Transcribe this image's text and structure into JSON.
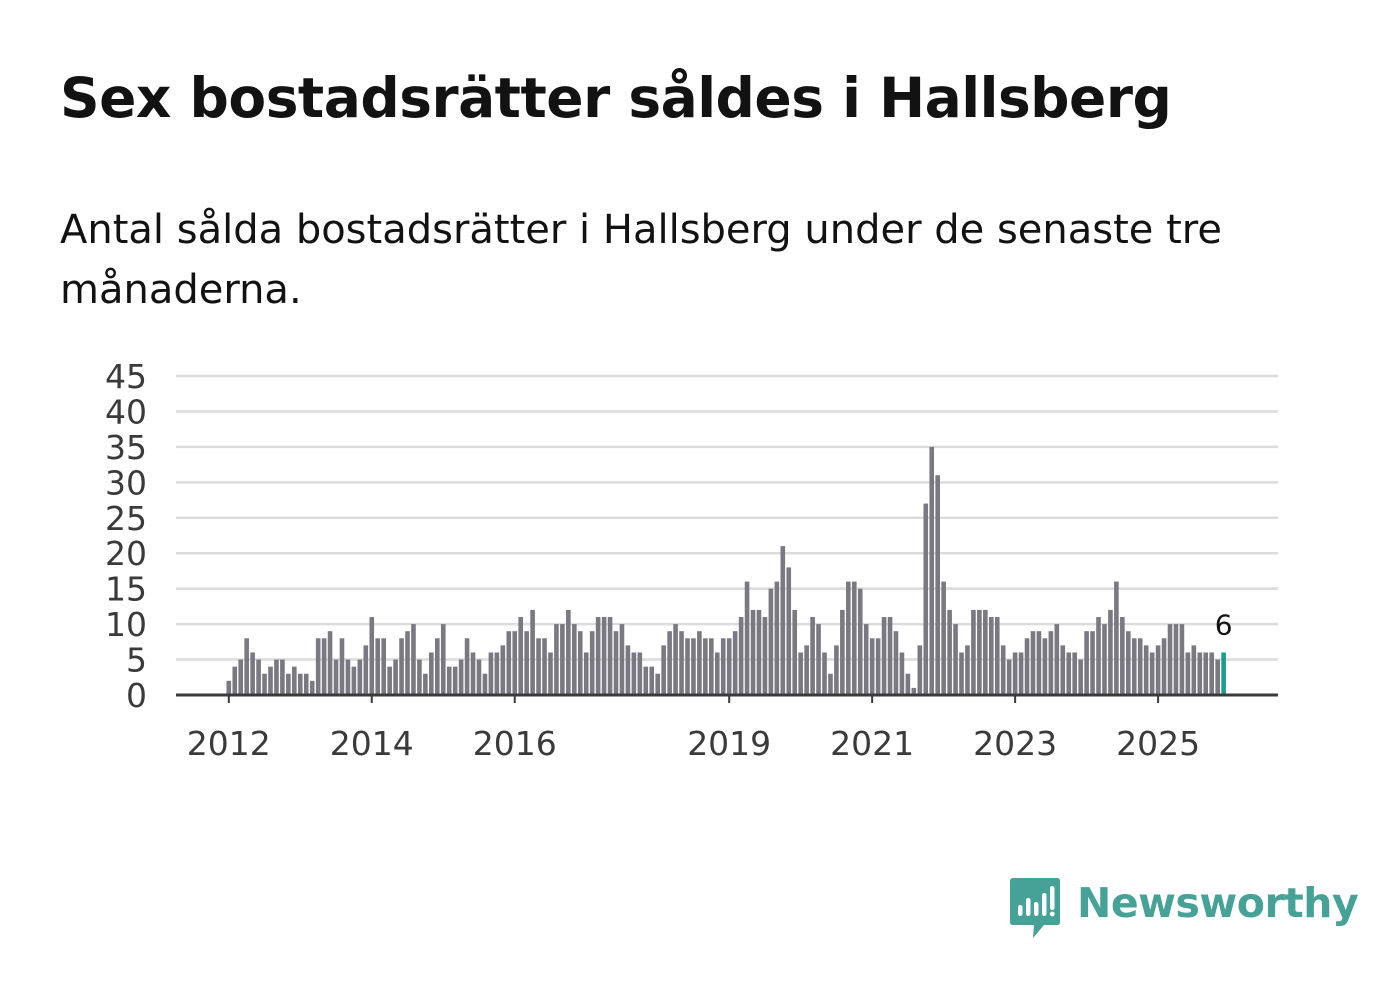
{
  "title": "Sex bostadsrätter såldes i Hallsberg",
  "subtitle": "Antal sålda bostadsrätter i Hallsberg under de senaste tre månaderna.",
  "brand": {
    "name": "Newsworthy"
  },
  "colors": {
    "bar": "#7a7880",
    "highlight": "#1a9e94",
    "grid": "#dcdcdc",
    "axis": "#3a3a3a",
    "brand": "#46a297"
  },
  "chart_data": {
    "type": "bar",
    "title": "Sex bostadsrätter såldes i Hallsberg",
    "subtitle": "Antal sålda bostadsrätter i Hallsberg under de senaste tre månaderna.",
    "xlabel": "",
    "ylabel": "",
    "ylim": [
      0,
      45
    ],
    "y_ticks": [
      "0",
      "5",
      "10",
      "15",
      "20",
      "25",
      "30",
      "35",
      "40",
      "45"
    ],
    "x_ticks": [
      "2012",
      "2014",
      "2016",
      "2019",
      "2021",
      "2023",
      "2025"
    ],
    "grid": true,
    "start": "2012-01",
    "frequency": "monthly",
    "values": [
      2,
      4,
      5,
      8,
      6,
      5,
      3,
      4,
      5,
      5,
      3,
      4,
      3,
      3,
      2,
      8,
      8,
      9,
      5,
      8,
      5,
      4,
      5,
      7,
      11,
      8,
      8,
      4,
      5,
      8,
      9,
      10,
      5,
      3,
      6,
      8,
      10,
      4,
      4,
      5,
      8,
      6,
      5,
      3,
      6,
      6,
      7,
      9,
      9,
      11,
      9,
      12,
      8,
      8,
      6,
      10,
      10,
      12,
      10,
      9,
      6,
      9,
      11,
      11,
      11,
      9,
      10,
      7,
      6,
      6,
      4,
      4,
      3,
      7,
      9,
      10,
      9,
      8,
      8,
      9,
      8,
      8,
      6,
      8,
      8,
      9,
      11,
      16,
      12,
      12,
      11,
      15,
      16,
      21,
      18,
      12,
      6,
      7,
      11,
      10,
      6,
      3,
      7,
      12,
      16,
      16,
      15,
      10,
      8,
      8,
      11,
      11,
      9,
      6,
      3,
      1,
      7,
      27,
      35,
      31,
      16,
      12,
      10,
      6,
      7,
      12,
      12,
      12,
      11,
      11,
      7,
      5,
      6,
      6,
      8,
      9,
      9,
      8,
      9,
      10,
      7,
      6,
      6,
      5,
      9,
      9,
      11,
      10,
      12,
      16,
      11,
      9,
      8,
      8,
      7,
      6,
      7,
      8,
      10,
      10,
      10,
      6,
      7,
      6,
      6,
      6,
      5,
      6
    ],
    "highlight_last": true,
    "annotation": "6"
  }
}
